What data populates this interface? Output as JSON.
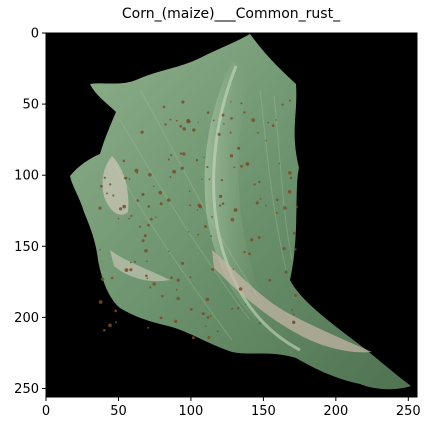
{
  "title": "Corn_(maize)___Common_rust_",
  "image": {
    "subject": "corn-leaf-with-common-rust",
    "background_color": "#000000",
    "leaf_colors": {
      "base": "#6f9670",
      "light": "#8fb08c",
      "dark": "#4f7250",
      "lesion": "#c9b8a8",
      "rust_spot": "#7a4a2a"
    }
  },
  "axes": {
    "x_range": [
      0,
      256
    ],
    "y_range": [
      0,
      256
    ],
    "x_ticks": [
      {
        "value": 0,
        "label": "0"
      },
      {
        "value": 50,
        "label": "50"
      },
      {
        "value": 100,
        "label": "100"
      },
      {
        "value": 150,
        "label": "150"
      },
      {
        "value": 200,
        "label": "200"
      },
      {
        "value": 250,
        "label": "250"
      }
    ],
    "y_ticks": [
      {
        "value": 0,
        "label": "0"
      },
      {
        "value": 50,
        "label": "50"
      },
      {
        "value": 100,
        "label": "100"
      },
      {
        "value": 150,
        "label": "150"
      },
      {
        "value": 200,
        "label": "200"
      },
      {
        "value": 250,
        "label": "250"
      }
    ]
  }
}
